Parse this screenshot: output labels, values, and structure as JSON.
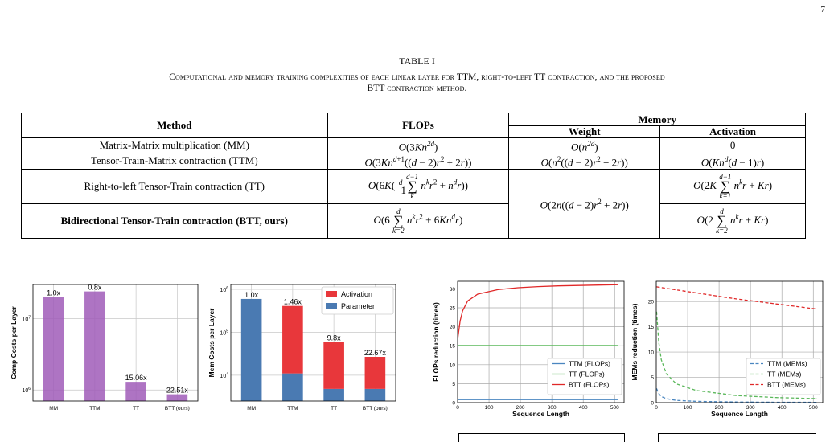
{
  "page_number": "7",
  "table": {
    "label": "TABLE I",
    "caption": "Computational and memory training complexities of each linear layer for TTM, right-to-left TT contraction, and the proposed BTT contraction method.",
    "headers": {
      "method": "Method",
      "flops": "FLOPs",
      "memory": "Memory",
      "weight": "Weight",
      "activation": "Activation"
    },
    "rows": [
      {
        "method": "Matrix-Matrix multiplication (MM)",
        "flops": "O(3Kn^{2d})",
        "weight": "O(n^{2d})",
        "activation": "0"
      },
      {
        "method": "Tensor-Train-Matrix contraction (TTM)",
        "flops": "O(3Kn^{d+1}((d − 2)r^2 + 2r))",
        "weight": "O(n^2((d − 2)r^2 + 2r))",
        "activation": "O(Kn^d(d − 1)r)"
      },
      {
        "method": "Right-to-left Tensor-Train contraction (TT)",
        "flops": "O(6K(Σ_{k=1}^{d−1} n^k r^2 + n^d r))",
        "weight": "O(2n((d − 2)r^2 + 2r))",
        "activation": "O(2K Σ_{k=1}^{d−1} n^k r + Kr)"
      },
      {
        "method": "Bidirectional Tensor-Train contraction (BTT, ours)",
        "flops": "O(6 Σ_{k=2}^{d} n^k r^2 + 6Kn^d r)",
        "weight": "",
        "activation": "O(2 Σ_{k=2}^{d} n^k r + Kr)"
      }
    ]
  },
  "chart_data": [
    {
      "type": "bar",
      "ylabel": "Comp Costs per Layer",
      "yscale": "log",
      "categories": [
        "MM",
        "TTM",
        "TT",
        "BTT (ours)"
      ],
      "values": [
        20000000,
        24000000,
        1300000,
        870000
      ],
      "data_labels": [
        "1.0x",
        "0.8x",
        "15.06x",
        "22.51x"
      ],
      "color": "#a05cb8",
      "ytick_labels": [
        "10^6",
        "10^7"
      ]
    },
    {
      "type": "bar",
      "stacked": true,
      "ylabel": "Mem Costs per Layer",
      "yscale": "log",
      "categories": [
        "MM",
        "TTM",
        "TT",
        "BTT (ours)"
      ],
      "series": [
        {
          "name": "Parameter",
          "values": [
            600000,
            11000,
            4800,
            4800
          ],
          "color": "#4a7ab2"
        },
        {
          "name": "Activation",
          "values": [
            0,
            400000,
            55000,
            22000
          ],
          "color": "#e8373b"
        }
      ],
      "data_labels": [
        "1.0x",
        "1.46x",
        "9.8x",
        "22.67x"
      ],
      "legend": "top-right",
      "ytick_labels": [
        "10^4",
        "10^5",
        "10^6"
      ]
    },
    {
      "type": "line",
      "xlabel": "Sequence Length",
      "ylabel": "FLOPs reduction (times)",
      "xlim": [
        0,
        530
      ],
      "ylim": [
        0,
        32
      ],
      "grid": true,
      "legend": "lower-right",
      "xticks": [
        0,
        100,
        200,
        300,
        400,
        500
      ],
      "yticks": [
        0,
        5,
        10,
        15,
        20,
        25,
        30
      ],
      "series": [
        {
          "name": "TTM (FLOPs)",
          "color": "#4a86c0",
          "x": [
            1,
            512
          ],
          "y": [
            0.8,
            0.8
          ]
        },
        {
          "name": "TT (FLOPs)",
          "color": "#5cb85c",
          "x": [
            1,
            512
          ],
          "y": [
            15.06,
            15.06
          ]
        },
        {
          "name": "BTT (FLOPs)",
          "color": "#e02828",
          "x": [
            1,
            8,
            16,
            32,
            64,
            128,
            192,
            256,
            320,
            384,
            448,
            512
          ],
          "y": [
            17.2,
            21.5,
            24.2,
            26.8,
            28.6,
            29.8,
            30.3,
            30.6,
            30.8,
            30.9,
            31.0,
            31.1
          ]
        }
      ]
    },
    {
      "type": "line",
      "xlabel": "Sequence Length",
      "ylabel": "MEMs reduction (times)",
      "xlim": [
        0,
        530
      ],
      "ylim": [
        0,
        24
      ],
      "grid": true,
      "legend": "lower-right",
      "xticks": [
        0,
        100,
        200,
        300,
        400,
        500
      ],
      "yticks": [
        0,
        5,
        10,
        15,
        20
      ],
      "series": [
        {
          "name": "TTM (MEMs)",
          "color": "#4a86c0",
          "dash": true,
          "x": [
            1,
            8,
            16,
            32,
            64,
            128,
            256,
            384,
            512
          ],
          "y": [
            2.8,
            1.8,
            1.2,
            0.8,
            0.45,
            0.25,
            0.12,
            0.08,
            0.06
          ]
        },
        {
          "name": "TT (MEMs)",
          "color": "#5cb85c",
          "dash": true,
          "x": [
            1,
            8,
            16,
            32,
            64,
            128,
            256,
            384,
            512
          ],
          "y": [
            18.0,
            12.0,
            8.5,
            5.7,
            3.7,
            2.4,
            1.4,
            1.0,
            0.8
          ]
        },
        {
          "name": "BTT (MEMs)",
          "color": "#e02828",
          "dash": true,
          "x": [
            1,
            128,
            256,
            384,
            512
          ],
          "y": [
            22.9,
            21.7,
            20.5,
            19.5,
            18.5
          ]
        }
      ]
    }
  ]
}
